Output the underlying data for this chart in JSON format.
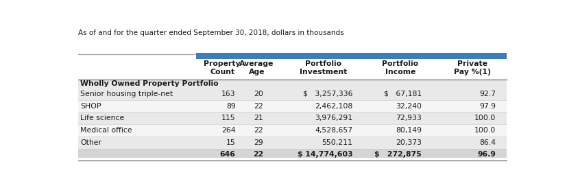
{
  "subtitle": "As of and for the quarter ended September 30, 2018, dollars in thousands",
  "col_headers": [
    "Property\nCount",
    "Average\nAge",
    "Portfolio\nInvestment",
    "Portfolio\nIncome",
    "Private\nPay %⁻¹⁾"
  ],
  "col_headers_display": [
    "Property\nCount",
    "Average\nAge",
    "Portfolio\nInvestment",
    "Portfolio\nIncome",
    "Private\nPay %(1)"
  ],
  "section_header": "Wholly Owned Property Portfolio",
  "rows": [
    {
      "label": "Senior housing triple-net",
      "values": [
        "163",
        "20",
        "$   3,257,336",
        "$   67,181",
        "92.7"
      ]
    },
    {
      "label": "SHOP",
      "values": [
        "89",
        "22",
        "2,462,108",
        "32,240",
        "97.9"
      ]
    },
    {
      "label": "Life science",
      "values": [
        "115",
        "21",
        "3,976,291",
        "72,933",
        "100.0"
      ]
    },
    {
      "label": "Medical office",
      "values": [
        "264",
        "22",
        "4,528,657",
        "80,149",
        "100.0"
      ]
    },
    {
      "label": "Other",
      "values": [
        "15",
        "29",
        "550,211",
        "20,373",
        "86.4"
      ]
    }
  ],
  "total_row": {
    "label": "",
    "values": [
      "646",
      "22",
      "$ 14,774,603",
      "$   272,875",
      "96.9"
    ]
  },
  "header_bar_color": "#3b7dbf",
  "row_colors_odd": "#e9e9e9",
  "row_colors_even": "#f5f5f5",
  "total_row_color": "#d5d5d5",
  "section_header_bg": "#e9e9e9",
  "bg_color": "#ffffff",
  "text_color": "#1a1a1a",
  "subtitle_fontsize": 7.5,
  "header_fontsize": 7.8,
  "body_fontsize": 7.8
}
